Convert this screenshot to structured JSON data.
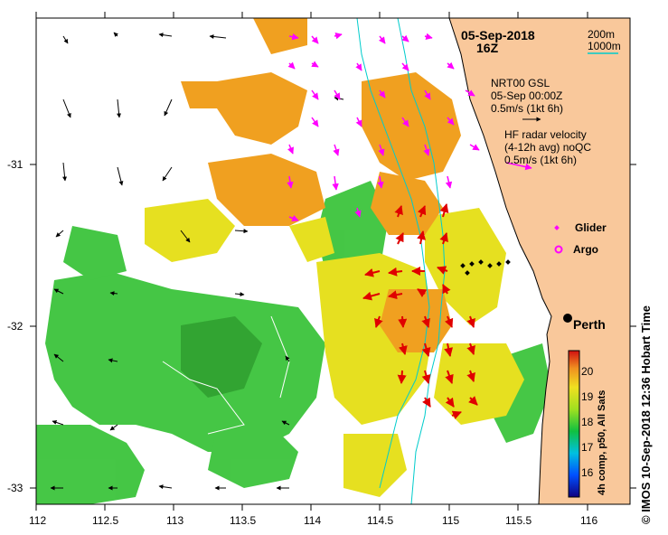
{
  "map": {
    "date_line1": "05-Sep-2018",
    "date_line2": "16Z",
    "bathy_legend": [
      "200m",
      "1000m"
    ],
    "gsl_legend": [
      "NRT00 GSL",
      "05-Sep 00:00Z",
      "0.5m/s (1kt 6h)"
    ],
    "radar_legend": [
      "HF radar velocity",
      "(4-12h avg) noQC",
      "0.5m/s (1kt 6h)"
    ],
    "glider_label": "Glider",
    "argo_label": "Argo",
    "city_label": "Perth",
    "colorbar_label": "4h comp, p50, All Sats",
    "colorbar_ticks": [
      "20",
      "19",
      "18",
      "17",
      "16"
    ],
    "credit": "© IMOS 10-Sep-2018 12:36 Hobart Time",
    "x_ticks": [
      "112",
      "112.5",
      "113",
      "113.5",
      "114",
      "114.5",
      "115",
      "115.5",
      "116"
    ],
    "y_ticks": [
      "-31",
      "-32",
      "-33"
    ],
    "colors": {
      "land": "#f9c89b",
      "radar_arrow": "#ff00ff",
      "red_arrow": "#e00000",
      "bathy_200": "#00cccc",
      "sst_warm": "#f0a020",
      "sst_mid": "#e8e820",
      "sst_cool": "#3cc43c"
    }
  },
  "chart_data": {
    "type": "heatmap",
    "xlim": [
      112,
      116.3
    ],
    "ylim": [
      -33.1,
      -30.1
    ],
    "x_ticks": [
      112,
      112.5,
      113,
      113.5,
      114,
      114.5,
      115,
      115.5,
      116
    ],
    "y_ticks": [
      -31,
      -32,
      -33
    ],
    "colorbar": {
      "label": "4h comp, p50, All Sats",
      "range": [
        15.5,
        20.7
      ],
      "ticks": [
        16,
        17,
        18,
        19,
        20
      ]
    },
    "markers": [
      {
        "label": "Perth",
        "lon": 115.86,
        "lat": -31.95
      }
    ]
  }
}
